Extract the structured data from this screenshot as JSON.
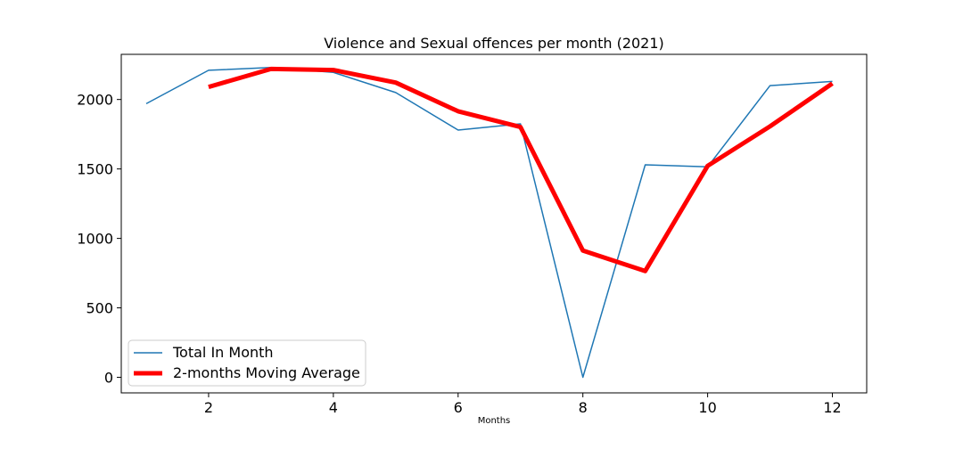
{
  "chart_data": {
    "type": "line",
    "title": "Violence and Sexual offences per month (2021)",
    "xlabel": "Months",
    "ylabel": "",
    "xlim": [
      0.6,
      12.55
    ],
    "ylim": [
      -112,
      2325
    ],
    "x_ticks": [
      2,
      4,
      6,
      8,
      10,
      12
    ],
    "y_ticks": [
      0,
      500,
      1000,
      1500,
      2000
    ],
    "legend_position": "lower-left",
    "grid": false,
    "series": [
      {
        "name": "Total In Month",
        "color": "#1f77b4",
        "x": [
          1,
          2,
          3,
          4,
          5,
          6,
          7,
          8,
          9,
          10,
          11,
          12
        ],
        "values": [
          1970,
          2210,
          2230,
          2195,
          2050,
          1780,
          1825,
          0,
          1530,
          1515,
          2100,
          2130
        ]
      },
      {
        "name": "2-months Moving Average",
        "color": "#ff0000",
        "x": [
          2,
          3,
          4,
          5,
          6,
          7,
          8,
          9,
          10,
          11,
          12
        ],
        "values": [
          2090,
          2220,
          2212,
          2122,
          1915,
          1802,
          912,
          765,
          1522,
          1807,
          2115
        ]
      }
    ]
  }
}
